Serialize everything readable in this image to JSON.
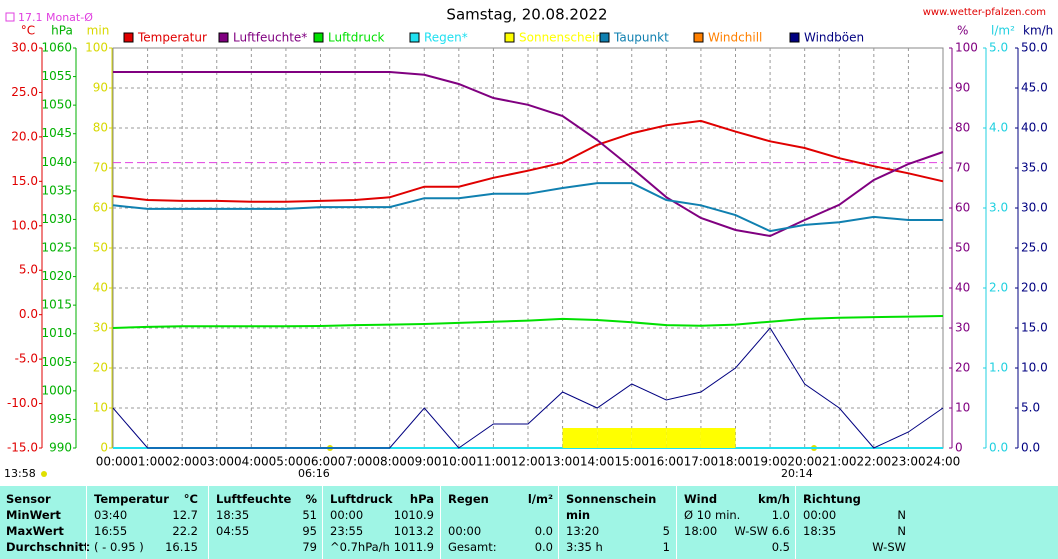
{
  "chart_data": {
    "type": "line",
    "title": "Samstag, 20.08.2022",
    "site": "www.wetter-pfalzen.com",
    "reference": {
      "label": "17.1 Monat-Ø",
      "value": 17.1,
      "axis": "°C",
      "color": "#e040e0"
    },
    "categories": [
      "00:00",
      "01:00",
      "02:00",
      "03:00",
      "04:00",
      "05:00",
      "06:00",
      "07:00",
      "08:00",
      "09:00",
      "10:00",
      "11:00",
      "12:00",
      "13:00",
      "14:00",
      "15:00",
      "16:00",
      "17:00",
      "18:00",
      "19:00",
      "20:00",
      "21:00",
      "22:00",
      "23:00",
      "24:00"
    ],
    "grid": true,
    "axes": [
      {
        "unit": "°C",
        "side": "left",
        "color": "#e00000",
        "lim": [
          -15,
          30
        ],
        "ticks": [
          {
            "value": -15,
            "label": "-15.0"
          },
          {
            "value": -10,
            "label": "-10.0"
          },
          {
            "value": -5,
            "label": "-5.0"
          },
          {
            "value": 0,
            "label": "0.0"
          },
          {
            "value": 5,
            "label": "5.0"
          },
          {
            "value": 10,
            "label": "10.0"
          },
          {
            "value": 15,
            "label": "15.0"
          },
          {
            "value": 20,
            "label": "20.0"
          },
          {
            "value": 25,
            "label": "25.0"
          },
          {
            "value": 30,
            "label": "30.0"
          }
        ]
      },
      {
        "unit": "hPa",
        "side": "left",
        "color": "#00b000",
        "lim": [
          990,
          1060
        ],
        "ticks": [
          990,
          995,
          1000,
          1005,
          1010,
          1015,
          1020,
          1025,
          1030,
          1035,
          1040,
          1045,
          1050,
          1055,
          1060
        ]
      },
      {
        "unit": "min",
        "side": "left",
        "color": "#d8d800",
        "lim": [
          0,
          100
        ],
        "ticks": [
          0,
          10,
          20,
          30,
          40,
          50,
          60,
          70,
          80,
          90,
          100
        ]
      },
      {
        "unit": "%",
        "side": "right",
        "color": "#800080",
        "lim": [
          0,
          100
        ],
        "ticks": [
          0,
          10,
          20,
          30,
          40,
          50,
          60,
          70,
          80,
          90,
          100
        ]
      },
      {
        "unit": "l/m²",
        "side": "right",
        "color": "#20d0e0",
        "lim": [
          0,
          5
        ],
        "ticks": [
          {
            "value": 0,
            "label": "0.0"
          },
          {
            "value": 1,
            "label": "1.0"
          },
          {
            "value": 2,
            "label": "2.0"
          },
          {
            "value": 3,
            "label": "3.0"
          },
          {
            "value": 4,
            "label": "4.0"
          },
          {
            "value": 5,
            "label": "5.0"
          }
        ]
      },
      {
        "unit": "km/h",
        "side": "right",
        "color": "#000080",
        "lim": [
          0,
          50
        ],
        "ticks": [
          {
            "value": 0,
            "label": "0.0"
          },
          {
            "value": 5,
            "label": "5.0"
          },
          {
            "value": 10,
            "label": "10.0"
          },
          {
            "value": 15,
            "label": "15.0"
          },
          {
            "value": 20,
            "label": "20.0"
          },
          {
            "value": 25,
            "label": "25.0"
          },
          {
            "value": 30,
            "label": "30.0"
          },
          {
            "value": 35,
            "label": "35.0"
          },
          {
            "value": 40,
            "label": "40.0"
          },
          {
            "value": 45,
            "label": "45.0"
          },
          {
            "value": 50,
            "label": "50.0"
          }
        ]
      }
    ],
    "series": [
      {
        "name": "Temperatur",
        "color": "#e00000",
        "axis": "°C",
        "values": [
          13.35,
          12.9,
          12.8,
          12.8,
          12.7,
          12.7,
          12.8,
          12.9,
          13.2,
          14.4,
          14.4,
          15.4,
          16.2,
          17.1,
          19.1,
          20.4,
          21.3,
          21.8,
          20.6,
          19.5,
          18.75,
          17.6,
          16.7,
          15.9,
          15.0
        ]
      },
      {
        "name": "Luftfeuchte*",
        "color": "#800080",
        "axis": "%",
        "values": [
          94,
          94,
          94,
          94,
          94,
          94,
          94,
          94,
          94,
          93.3,
          91,
          87.5,
          85.8,
          83,
          77,
          70,
          62.7,
          57.5,
          54.5,
          53,
          57,
          60.8,
          67,
          71,
          74
        ]
      },
      {
        "name": "Luftdruck",
        "color": "#00e000",
        "axis": "hPa",
        "values": [
          1011.0,
          1011.2,
          1011.3,
          1011.3,
          1011.3,
          1011.3,
          1011.35,
          1011.5,
          1011.6,
          1011.7,
          1011.9,
          1012.1,
          1012.3,
          1012.6,
          1012.4,
          1012.0,
          1011.5,
          1011.4,
          1011.6,
          1012.1,
          1012.6,
          1012.8,
          1012.9,
          1013.0,
          1013.1
        ]
      },
      {
        "name": "Regen*",
        "color": "#20e0f0",
        "axis": "l/m²",
        "values": [
          0,
          0,
          0,
          0,
          0,
          0,
          0,
          0,
          0,
          0,
          0,
          0,
          0,
          0,
          0,
          0,
          0,
          0,
          0,
          0,
          0,
          0,
          0,
          0,
          0
        ]
      },
      {
        "name": "Sonnenschein",
        "color": "#ffff00",
        "axis": "min",
        "style": "bar",
        "values": [
          0,
          0,
          0,
          0,
          0,
          0,
          0,
          0,
          0,
          0,
          0,
          0,
          0,
          5,
          5,
          5,
          5,
          5,
          0,
          0,
          0,
          0,
          0,
          0,
          0
        ]
      },
      {
        "name": "Taupunkt",
        "color": "#1080b0",
        "axis": "°C",
        "values": [
          12.3,
          11.9,
          11.9,
          11.9,
          11.9,
          11.9,
          12.1,
          12.1,
          12.1,
          13.1,
          13.1,
          13.6,
          13.6,
          14.25,
          14.8,
          14.8,
          12.9,
          12.3,
          11.2,
          9.4,
          10.1,
          10.4,
          11.0,
          10.65,
          10.65
        ]
      },
      {
        "name": "Windchill",
        "color": "#ff8000",
        "axis": "°C"
      },
      {
        "name": "Windböen",
        "color": "#000080",
        "axis": "km/h",
        "values": [
          5,
          0,
          0,
          0,
          0,
          0,
          0,
          0,
          0,
          5,
          0,
          3,
          3,
          7,
          5,
          8,
          6,
          7,
          10,
          15,
          8,
          5,
          0,
          2,
          5
        ]
      }
    ],
    "sunrise": "06:16",
    "sunset": "20:14",
    "time": "13:58"
  },
  "table": {
    "header": [
      [
        "Sensor",
        null
      ],
      [
        "Temperatur",
        "°C"
      ],
      [
        "Luftfeuchte",
        "%"
      ],
      [
        "Luftdruck",
        "hPa"
      ],
      [
        "Regen",
        "l/m²"
      ],
      [
        "Sonnenschein min",
        null
      ],
      [
        "Wind",
        "km/h"
      ],
      [
        "Richtung",
        null
      ]
    ],
    "rows": [
      {
        "label": "MinWert",
        "cells": [
          [
            "03:40",
            "12.7"
          ],
          [
            "18:35",
            "51"
          ],
          [
            "00:00",
            "1010.9"
          ],
          [
            null,
            null
          ],
          [
            null,
            null
          ],
          [
            "Ø 10 min.",
            "1.0"
          ],
          [
            "00:00",
            "N"
          ]
        ]
      },
      {
        "label": "MaxWert",
        "cells": [
          [
            "16:55",
            "22.2"
          ],
          [
            "04:55",
            "95"
          ],
          [
            "23:55",
            "1013.2"
          ],
          [
            "00:00",
            "0.0"
          ],
          [
            "13:20",
            "5"
          ],
          [
            "18:00",
            "W-SW 6.6"
          ],
          [
            "18:35",
            "N"
          ]
        ]
      },
      {
        "label": "Durchschnitt",
        "cells": [
          [
            "( - 0.95 )",
            "16.15"
          ],
          [
            null,
            "79"
          ],
          [
            "^0.7hPa/h",
            "1011.9"
          ],
          [
            "Gesamt:",
            "0.0"
          ],
          [
            "3:35 h",
            "1"
          ],
          [
            null,
            "0.5"
          ],
          [
            null,
            "W-SW"
          ]
        ]
      }
    ]
  }
}
